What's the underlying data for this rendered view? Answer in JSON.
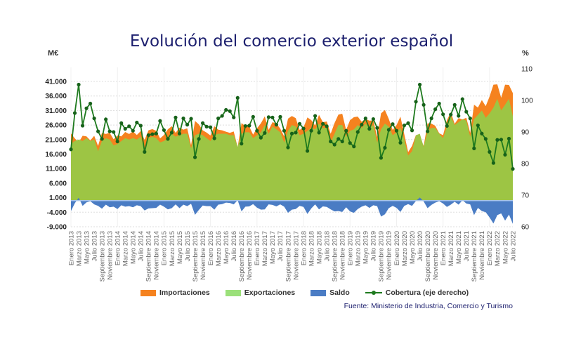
{
  "chart_data": {
    "type": "area",
    "title": "Evolución del comercio exterior español",
    "left_axis_label": "M€",
    "right_axis_label": "%",
    "left_ticks": [
      "41.000",
      "36.000",
      "31.000",
      "26.000",
      "21.000",
      "16.000",
      "11.000",
      "6.000",
      "1.000",
      "-4.000",
      "-9.000"
    ],
    "left_tick_values": [
      41000,
      36000,
      31000,
      26000,
      21000,
      16000,
      11000,
      6000,
      1000,
      -4000,
      -9000
    ],
    "right_ticks": [
      "110",
      "100",
      "90",
      "80",
      "70",
      "60"
    ],
    "right_tick_values": [
      110,
      100,
      90,
      80,
      70,
      60
    ],
    "ylim_left": [
      -9000,
      41000
    ],
    "ylim_right": [
      60,
      110
    ],
    "grid": true,
    "legend_position": "bottom",
    "x_tick_labels": [
      "Enero 2013",
      "Marzo 2013",
      "Mayo 2013",
      "Julio 2013",
      "Septiembre 2013",
      "Noviembre 2013",
      "Enero 2014",
      "Marzo 2014",
      "Mayo 2014",
      "Julio 2014",
      "Septiembre 2014",
      "Noviembre 2014",
      "Enero 2015",
      "Marzo 2015",
      "Mayo 2015",
      "Julio 2015",
      "Septiembre 2015",
      "Noviembre 2015",
      "Enero 2016",
      "Marzo 2016",
      "Mayo 2016",
      "Julio 2016",
      "Septiembre 2016",
      "Noviembre 2016",
      "Enero 2017",
      "Marzo 2017",
      "Mayo 2017",
      "Julio 2017",
      "Septiembre 2017",
      "Noviembre 2017",
      "Enero 2018",
      "Marzo 2018",
      "Mayo 2018",
      "Julio 2018",
      "Septiembre 2018",
      "Noviembre 2018",
      "Enero 2019",
      "Marzo 2019",
      "Mayo 2019",
      "Julio 2019",
      "Septiembre 2019",
      "Noviembre 2019",
      "Enero 2020",
      "Marzo 2020",
      "Mayo 2020",
      "Julio 2020",
      "Septiembre 2020",
      "Noviembre 2020",
      "Enero 2021",
      "Marzo 2021",
      "Mayo 2021",
      "Julio 2021",
      "Septiembre 2021",
      "Noviembre 2021",
      "Enero 2022",
      "Marzo 2022",
      "Mayo 2022",
      "Julio 2022"
    ],
    "series": [
      {
        "name": "Importaciones",
        "color": "#f5821f",
        "axis": "left",
        "values": [
          23100,
          21400,
          20000,
          22300,
          22100,
          20700,
          22300,
          18800,
          23300,
          22900,
          23300,
          21100,
          22400,
          22100,
          23600,
          22900,
          23800,
          22600,
          23900,
          20900,
          24200,
          24600,
          24000,
          21400,
          22600,
          24500,
          25600,
          23300,
          25100,
          24400,
          24900,
          19100,
          27400,
          26200,
          24200,
          23400,
          22400,
          25600,
          24400,
          24200,
          23700,
          23300,
          23800,
          18400,
          26700,
          25600,
          25500,
          22700,
          24900,
          26600,
          29000,
          24300,
          27000,
          26500,
          24800,
          22100,
          28200,
          29100,
          28400,
          24300,
          25200,
          28600,
          27700,
          25800,
          29500,
          27000,
          27200,
          23000,
          26700,
          29600,
          29900,
          24300,
          27700,
          28700,
          28900,
          27100,
          28100,
          27500,
          27600,
          21900,
          30000,
          31200,
          28100,
          24300,
          26000,
          28900,
          22800,
          16700,
          18800,
          22600,
          21900,
          18800,
          26600,
          26500,
          25700,
          23200,
          22500,
          27700,
          30400,
          26400,
          28400,
          27900,
          28500,
          23300,
          33000,
          32000,
          34600,
          32500,
          35800,
          39900,
          40000,
          35400,
          39900,
          39800,
          37000
        ]
      },
      {
        "name": "Exportaciones",
        "color": "#9dc544",
        "axis": "left",
        "values": [
          19500,
          20500,
          21000,
          20500,
          21500,
          20500,
          21000,
          17000,
          20500,
          21500,
          21000,
          19000,
          19500,
          20500,
          21500,
          21000,
          21500,
          21000,
          22000,
          17500,
          21500,
          22000,
          21500,
          20000,
          20500,
          21500,
          23000,
          22000,
          22500,
          23000,
          23000,
          18000,
          22500,
          23000,
          22500,
          21500,
          20500,
          22500,
          23000,
          23000,
          23000,
          22500,
          22500,
          18500,
          23000,
          23500,
          23500,
          21500,
          22500,
          23500,
          26000,
          23000,
          25500,
          24500,
          23500,
          20000,
          24000,
          26000,
          25500,
          22500,
          23000,
          24000,
          25000,
          24500,
          26500,
          25000,
          25000,
          20000,
          23000,
          26000,
          26000,
          22000,
          24000,
          24500,
          26000,
          25000,
          26500,
          25000,
          26000,
          20000,
          24500,
          26500,
          25500,
          22500,
          23500,
          25000,
          21000,
          15500,
          17000,
          22500,
          23000,
          18500,
          24000,
          25000,
          25000,
          23000,
          21500,
          25500,
          29000,
          26000,
          27000,
          28000,
          27500,
          22000,
          28000,
          29500,
          31000,
          28500,
          30000,
          32000,
          35000,
          31000,
          33000,
          35000,
          29000
        ]
      },
      {
        "name": "Saldo",
        "color": "#4a7cc4",
        "axis": "left",
        "values": "Exportaciones - Importaciones"
      },
      {
        "name": "Cobertura (eje derecho)",
        "color": "#1e7a1e",
        "axis": "right",
        "values": [
          84.5,
          96,
          105,
          92,
          97.5,
          99,
          94.3,
          90.2,
          87.8,
          94,
          90.2,
          90,
          87,
          92.8,
          91,
          91.8,
          90.4,
          93,
          92,
          83.7,
          89,
          89.3,
          89.5,
          93.5,
          90.6,
          87.8,
          89.8,
          94.6,
          89.5,
          94.3,
          92.3,
          94.2,
          82,
          87.8,
          92.8,
          91.7,
          91.5,
          88,
          94.3,
          95.1,
          97,
          96.6,
          94.6,
          100.8,
          86.3,
          91.9,
          92,
          94.8,
          90.4,
          88.2,
          89.7,
          94.7,
          94.6,
          92.3,
          94.8,
          90.4,
          85.1,
          89.5,
          89.8,
          92.6,
          91.1,
          84,
          90.4,
          95.1,
          89.8,
          92.6,
          91.8,
          87,
          86,
          87.8,
          87,
          90.4,
          86.5,
          85.4,
          90,
          92.3,
          94.3,
          91,
          94.1,
          91.3,
          81.8,
          85,
          90.7,
          92.5,
          90.4,
          86.6,
          92.1,
          92.8,
          90.5,
          99.6,
          105,
          98.6,
          90.2,
          94.3,
          97.2,
          99,
          95.6,
          91.9,
          95.5,
          98.6,
          95.1,
          100.4,
          96.4,
          94.3,
          84.8,
          92.1,
          89.5,
          87.8,
          83.7,
          80.2,
          87.5,
          87.6,
          82.8,
          87.9,
          78.3
        ]
      }
    ],
    "source": "Fuente: Ministerio de Industria, Comercio y Turismo"
  }
}
